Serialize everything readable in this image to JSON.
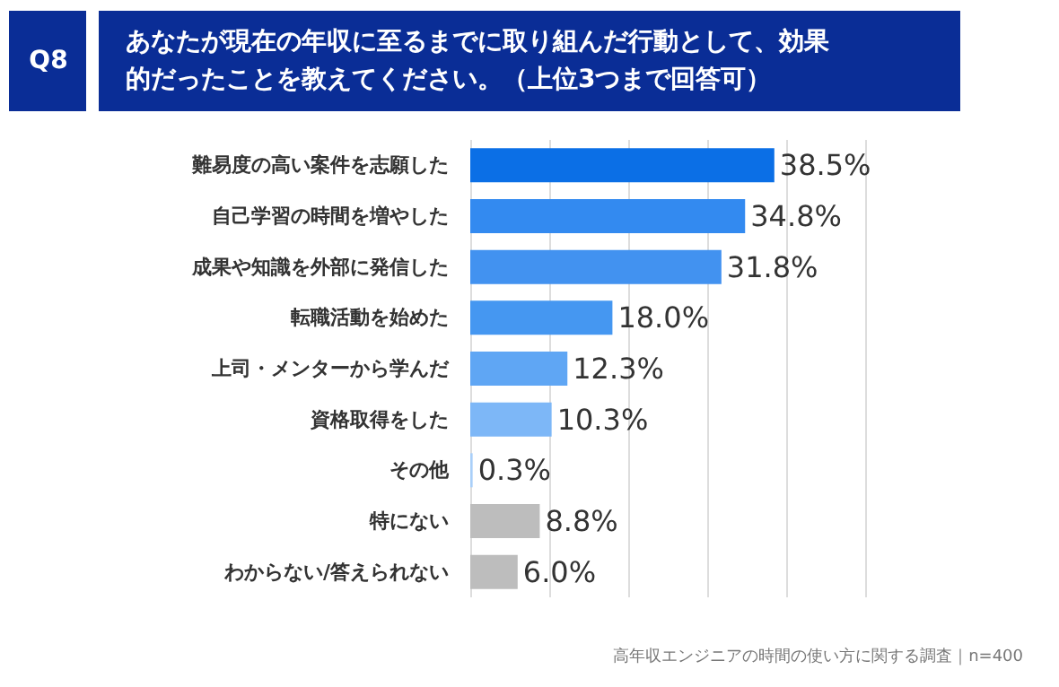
{
  "chart_data": {
    "type": "bar",
    "orientation": "horizontal",
    "title": "あなたが現在の年収に至るまでに取り組んだ行動として、効果的だったことを教えてください。（上位3つまで回答可）",
    "subtitle": "Q8",
    "categories": [
      "難易度の高い案件を志願した",
      "自己学習の時間を増やした",
      "成果や知識を外部に発信した",
      "転職活動を始めた",
      "上司・メンターから学んだ",
      "資格取得をした",
      "その他",
      "特にない",
      "わからない/答えられない"
    ],
    "values": [
      38.5,
      34.8,
      31.8,
      18.0,
      12.3,
      10.3,
      0.3,
      8.8,
      6.0
    ],
    "value_labels": [
      "38.5%",
      "34.8%",
      "31.8%",
      "18.0%",
      "12.3%",
      "10.3%",
      "0.3%",
      "8.8%",
      "6.0%"
    ],
    "colors": [
      "#0b6fe6",
      "#338af0",
      "#4292f0",
      "#4597f1",
      "#5fa6f4",
      "#7db7f7",
      "#a9cff9",
      "#bdbdbd",
      "#bdbdbd"
    ],
    "xlim": [
      0,
      50
    ],
    "xticks": [
      {
        "value": 0,
        "label": null
      },
      {
        "value": 10,
        "label": null
      },
      {
        "value": 20,
        "label": null
      },
      {
        "value": 30,
        "label": null
      },
      {
        "value": 40,
        "label": null
      },
      {
        "value": 50,
        "label": null
      }
    ],
    "grid": "x",
    "tick_labels": "y",
    "annotations": [
      "高年収エンジニアの時間の使い方に関する調査｜n=400"
    ]
  }
}
